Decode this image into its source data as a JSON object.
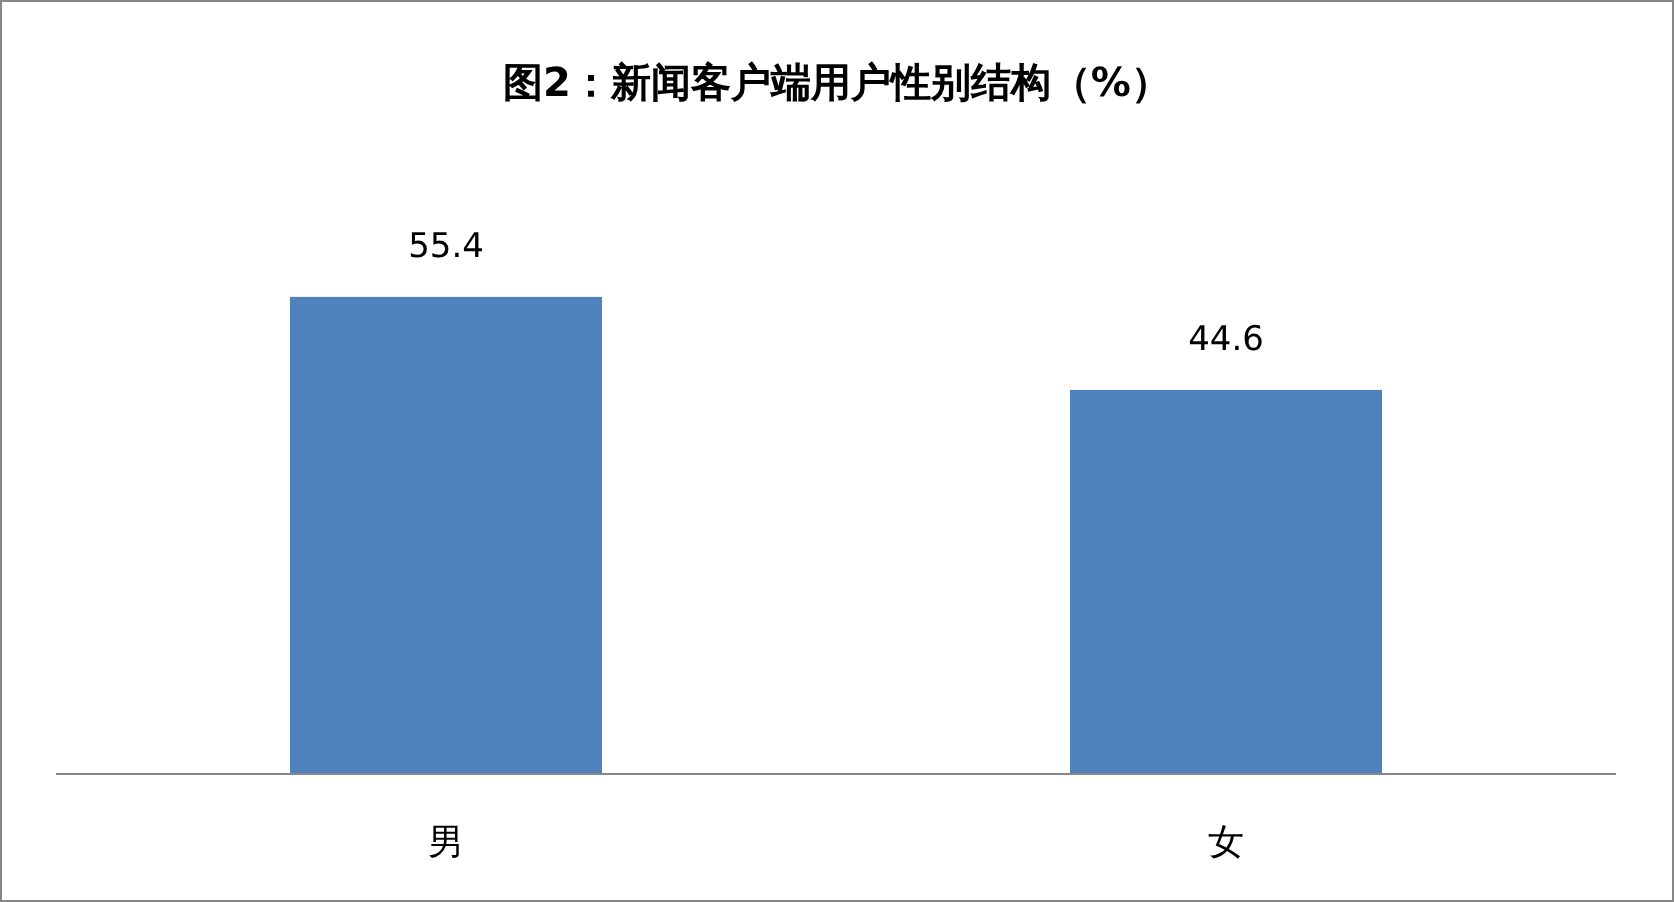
{
  "chart_data": {
    "type": "bar",
    "title": "图2：新闻客户端用户性别结构（%）",
    "categories": [
      "男",
      "女"
    ],
    "values": [
      55.4,
      44.6
    ],
    "color": "#4f81bd",
    "data_labels": true
  }
}
